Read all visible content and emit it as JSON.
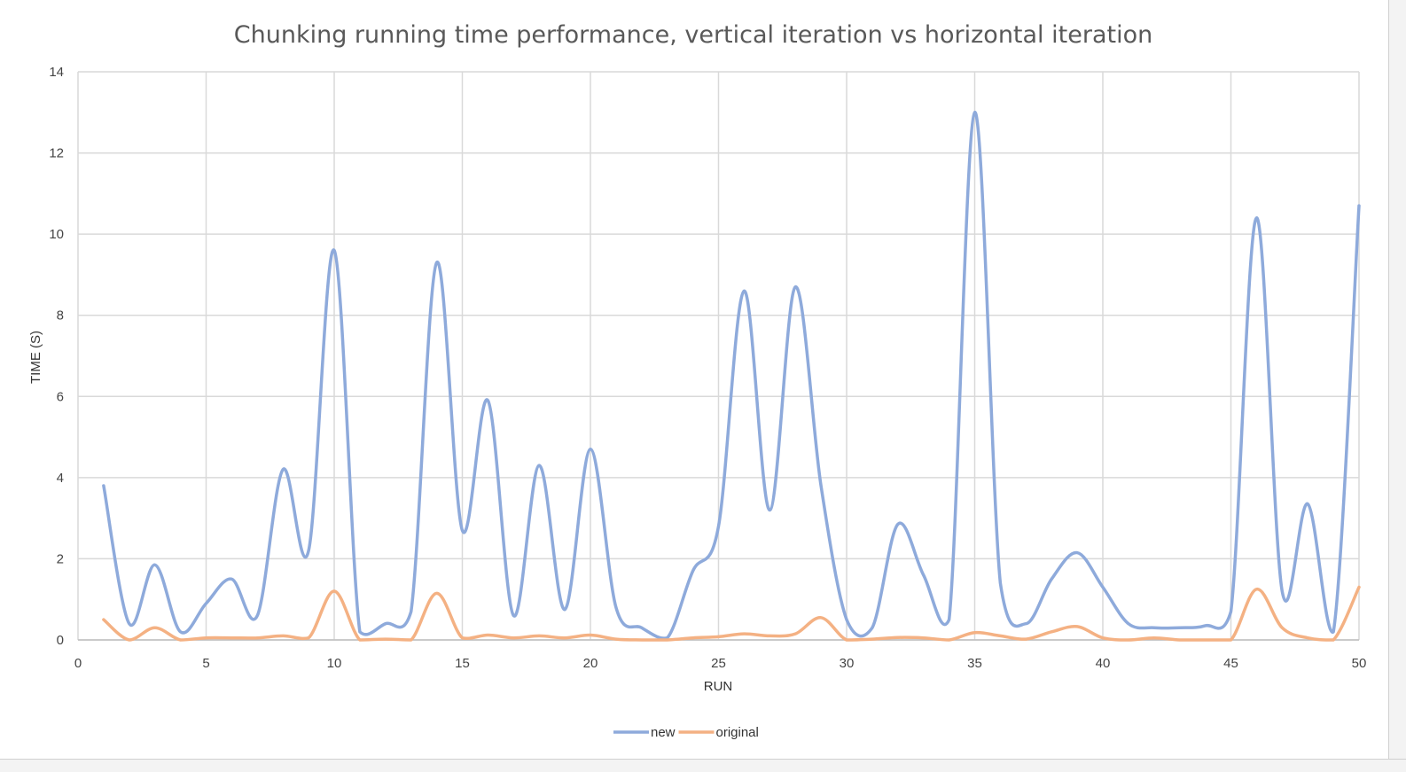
{
  "chart_data": {
    "type": "line",
    "title": "Chunking running time performance, vertical iteration vs horizontal iteration",
    "xlabel": "RUN",
    "ylabel": "TIME (S)",
    "xlim": [
      0,
      50
    ],
    "ylim": [
      0,
      14
    ],
    "xticks": [
      0,
      5,
      10,
      15,
      20,
      25,
      30,
      35,
      40,
      45,
      50
    ],
    "yticks": [
      0,
      2,
      4,
      6,
      8,
      10,
      12,
      14
    ],
    "grid": true,
    "legend_position": "bottom",
    "x": [
      1,
      2,
      3,
      4,
      5,
      6,
      7,
      8,
      9,
      10,
      11,
      12,
      13,
      14,
      15,
      16,
      17,
      18,
      19,
      20,
      21,
      22,
      23,
      24,
      25,
      26,
      27,
      28,
      29,
      30,
      31,
      32,
      33,
      34,
      35,
      36,
      37,
      38,
      39,
      40,
      41,
      42,
      43,
      44,
      45,
      46,
      47,
      48,
      49,
      50
    ],
    "series": [
      {
        "name": "new",
        "color": "#8eaadb",
        "values": [
          3.8,
          0.4,
          1.85,
          0.2,
          0.9,
          1.5,
          0.6,
          4.2,
          2.2,
          9.6,
          0.2,
          0.4,
          0.7,
          9.3,
          2.7,
          5.9,
          0.6,
          4.3,
          0.75,
          4.7,
          0.8,
          0.3,
          0.05,
          1.7,
          2.8,
          8.6,
          3.2,
          8.7,
          3.8,
          0.5,
          0.3,
          2.85,
          1.6,
          0.5,
          13.0,
          1.4,
          0.4,
          1.5,
          2.15,
          1.3,
          0.4,
          0.3,
          0.3,
          0.35,
          0.7,
          10.4,
          1.2,
          3.35,
          0.2,
          10.7
        ]
      },
      {
        "name": "original",
        "color": "#f4b183",
        "values": [
          0.5,
          0.0,
          0.3,
          0.0,
          0.05,
          0.05,
          0.05,
          0.1,
          0.05,
          1.2,
          0.0,
          0.02,
          0.0,
          1.15,
          0.05,
          0.12,
          0.05,
          0.1,
          0.05,
          0.12,
          0.02,
          0.0,
          0.0,
          0.05,
          0.08,
          0.15,
          0.1,
          0.15,
          0.55,
          0.0,
          0.02,
          0.06,
          0.05,
          0.0,
          0.18,
          0.1,
          0.02,
          0.2,
          0.33,
          0.05,
          0.0,
          0.05,
          0.0,
          0.0,
          0.0,
          1.25,
          0.3,
          0.05,
          0.0,
          1.3
        ]
      }
    ]
  }
}
